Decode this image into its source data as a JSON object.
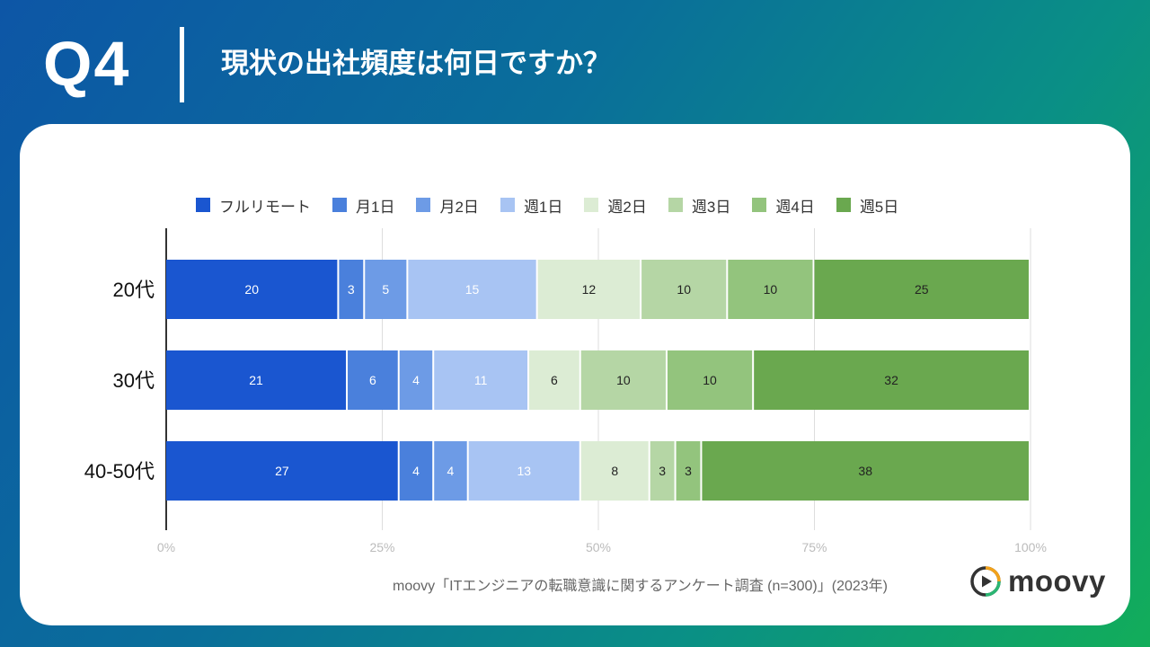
{
  "header": {
    "question_number": "Q4",
    "question_text": "現状の出社頻度は何日ですか？"
  },
  "colors": {
    "フルリモート": "#1a56d0",
    "月1日": "#4a80dc",
    "月2日": "#6d9be6",
    "週1日": "#a8c4f3",
    "週2日": "#dcecd4",
    "週3日": "#b5d6a5",
    "週4日": "#93c47d",
    "週5日": "#6aa84f"
  },
  "chart_data": {
    "type": "bar",
    "orientation": "horizontal",
    "stacked": "percent",
    "categories": [
      "20代",
      "30代",
      "40-50代"
    ],
    "series": [
      {
        "name": "フルリモート",
        "values": [
          20,
          21,
          27
        ]
      },
      {
        "name": "月1日",
        "values": [
          3,
          6,
          4
        ]
      },
      {
        "name": "月2日",
        "values": [
          5,
          4,
          4
        ]
      },
      {
        "name": "週1日",
        "values": [
          15,
          11,
          13
        ]
      },
      {
        "name": "週2日",
        "values": [
          12,
          6,
          8
        ]
      },
      {
        "name": "週3日",
        "values": [
          10,
          10,
          3
        ]
      },
      {
        "name": "週4日",
        "values": [
          10,
          10,
          3
        ]
      },
      {
        "name": "週5日",
        "values": [
          25,
          32,
          38
        ]
      }
    ],
    "x_ticks": [
      "0%",
      "25%",
      "50%",
      "75%",
      "100%"
    ],
    "xlim": [
      0,
      100
    ],
    "legend_position": "top",
    "grid": true
  },
  "footer": {
    "source": "moovy「ITエンジニアの転職意識に関するアンケート調査 (n=300)」(2023年)",
    "logo_text": "moovy"
  }
}
